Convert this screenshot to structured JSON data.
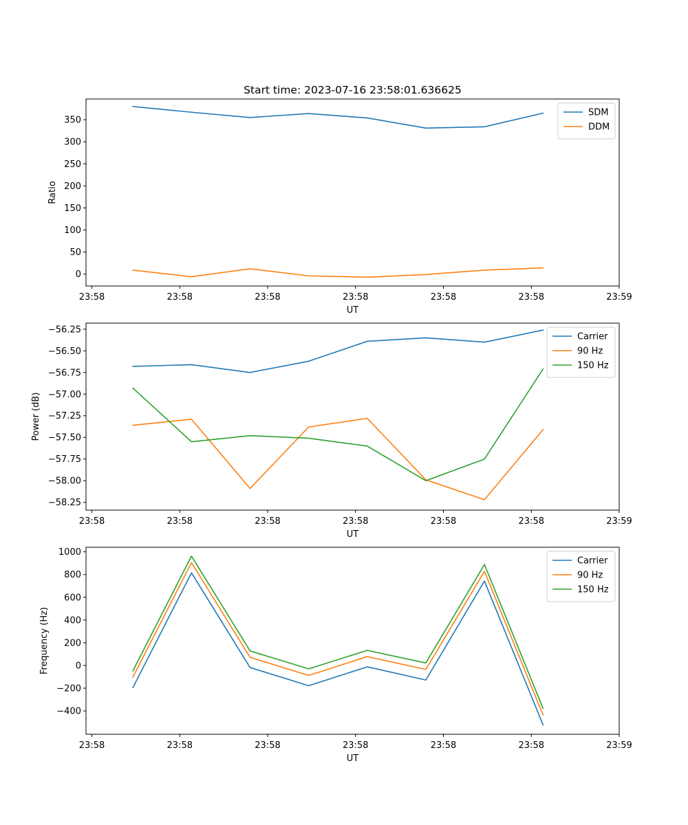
{
  "figure": {
    "title": "Start time: 2023-07-16 23:58:01.636625"
  },
  "colors": {
    "blue": "#1f77b4",
    "orange": "#ff7f0e",
    "green": "#2ca02c"
  },
  "chart_data": [
    {
      "type": "line",
      "id": "ratio",
      "xlabel": "UT",
      "ylabel": "Ratio",
      "xlim": [
        -0.8,
        8.3
      ],
      "ylim": [
        -27,
        397
      ],
      "x": [
        0,
        1,
        2,
        3,
        4,
        5,
        6,
        7
      ],
      "xticks": [
        -0.7,
        0.8,
        2.3,
        3.8,
        5.3,
        6.8,
        8.3
      ],
      "xtick_labels": [
        "23:58",
        "23:58",
        "23:58",
        "23:58",
        "23:58",
        "23:58",
        "23:59"
      ],
      "yticks": [
        0,
        50,
        100,
        150,
        200,
        250,
        300,
        350
      ],
      "ytick_labels": [
        "0",
        "50",
        "100",
        "150",
        "200",
        "250",
        "300",
        "350"
      ],
      "legend_position": "top-right",
      "series": [
        {
          "name": "SDM",
          "color": "#1f77b4",
          "values": [
            380,
            367,
            355,
            364,
            354,
            331,
            334,
            365
          ]
        },
        {
          "name": "DDM",
          "color": "#ff7f0e",
          "values": [
            9,
            -6,
            12,
            -4,
            -7,
            -1,
            9,
            14
          ]
        }
      ]
    },
    {
      "type": "line",
      "id": "power",
      "xlabel": "UT",
      "ylabel": "Power (dB)",
      "xlim": [
        -0.8,
        8.3
      ],
      "ylim": [
        -58.34,
        -56.18
      ],
      "x": [
        0,
        1,
        2,
        3,
        4,
        5,
        6,
        7
      ],
      "xticks": [
        -0.7,
        0.8,
        2.3,
        3.8,
        5.3,
        6.8,
        8.3
      ],
      "xtick_labels": [
        "23:58",
        "23:58",
        "23:58",
        "23:58",
        "23:58",
        "23:58",
        "23:59"
      ],
      "yticks": [
        -58.25,
        -58.0,
        -57.75,
        -57.5,
        -57.25,
        -57.0,
        -56.75,
        -56.5,
        -56.25
      ],
      "ytick_labels": [
        "−58.25",
        "−58.00",
        "−57.75",
        "−57.50",
        "−57.25",
        "−57.00",
        "−56.75",
        "−56.50",
        "−56.25"
      ],
      "legend_position": "top-right",
      "series": [
        {
          "name": "Carrier",
          "color": "#1f77b4",
          "values": [
            -56.68,
            -56.66,
            -56.75,
            -56.62,
            -56.39,
            -56.35,
            -56.4,
            -56.26
          ]
        },
        {
          "name": "90 Hz",
          "color": "#ff7f0e",
          "values": [
            -57.36,
            -57.29,
            -58.09,
            -57.38,
            -57.28,
            -57.99,
            -58.22,
            -57.41
          ]
        },
        {
          "name": "150 Hz",
          "color": "#2ca02c",
          "values": [
            -56.93,
            -57.55,
            -57.48,
            -57.51,
            -57.6,
            -58.0,
            -57.75,
            -56.71
          ]
        }
      ]
    },
    {
      "type": "line",
      "id": "frequency",
      "xlabel": "UT",
      "ylabel": "Frequency (Hz)",
      "xlim": [
        -0.8,
        8.3
      ],
      "ylim": [
        -605,
        1040
      ],
      "x": [
        0,
        1,
        2,
        3,
        4,
        5,
        6,
        7
      ],
      "xticks": [
        -0.7,
        0.8,
        2.3,
        3.8,
        5.3,
        6.8,
        8.3
      ],
      "xtick_labels": [
        "23:58",
        "23:58",
        "23:58",
        "23:58",
        "23:58",
        "23:58",
        "23:59"
      ],
      "yticks": [
        -400,
        -200,
        0,
        200,
        400,
        600,
        800,
        1000
      ],
      "ytick_labels": [
        "−400",
        "−200",
        "0",
        "200",
        "400",
        "600",
        "800",
        "1000"
      ],
      "legend_position": "top-right",
      "series": [
        {
          "name": "Carrier",
          "color": "#1f77b4",
          "values": [
            -195,
            815,
            -18,
            -178,
            -12,
            -128,
            742,
            -522
          ]
        },
        {
          "name": "90 Hz",
          "color": "#ff7f0e",
          "values": [
            -103,
            905,
            72,
            -88,
            78,
            -35,
            828,
            -435
          ]
        },
        {
          "name": "150 Hz",
          "color": "#2ca02c",
          "values": [
            -48,
            962,
            128,
            -30,
            133,
            22,
            888,
            -377
          ]
        }
      ]
    }
  ]
}
